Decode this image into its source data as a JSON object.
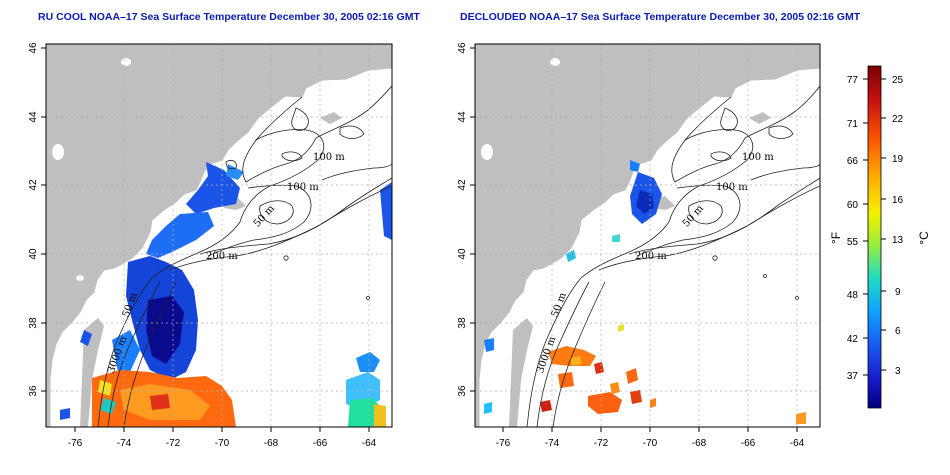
{
  "maps": [
    {
      "title": "RU COOL NOAA–17 Sea Surface Temperature December 30, 2005 02:16 GMT",
      "lat_ticks": [
        "46",
        "44",
        "42",
        "40",
        "38",
        "36"
      ],
      "lon_ticks": [
        "-76",
        "-74",
        "-72",
        "-70",
        "-68",
        "-66",
        "-64"
      ],
      "contour_labels": [
        "100 m",
        "100 m",
        "50 m",
        "200 m",
        "50 m",
        "3000 m"
      ]
    },
    {
      "title": "DECLOUDED NOAA–17 Sea Surface Temperature December 30, 2005 02:16 GMT",
      "lat_ticks": [
        "46",
        "44",
        "42",
        "40",
        "38",
        "36"
      ],
      "lon_ticks": [
        "-76",
        "-74",
        "-72",
        "-70",
        "-68",
        "-66",
        "-64"
      ],
      "contour_labels": [
        "100 m",
        "100 m",
        "50 m",
        "200 m",
        "50 m",
        "3000 m"
      ]
    }
  ],
  "colorbar": {
    "unit_f": "°F",
    "unit_c": "°C",
    "f_ticks": [
      "77",
      "71",
      "66",
      "60",
      "55",
      "48",
      "42",
      "37"
    ],
    "c_ticks": [
      "25",
      "22",
      "19",
      "16",
      "13",
      "9",
      "6",
      "3"
    ],
    "colors": [
      "#7a0000",
      "#c81010",
      "#ff5a00",
      "#ffb000",
      "#f5f000",
      "#9aee3a",
      "#20dcc0",
      "#10a0ff",
      "#1858f0",
      "#1818c8",
      "#000080"
    ]
  },
  "colors": {
    "land": "#bfbfbf",
    "title": "#0b1bb2",
    "grid": "#b0b0b0"
  }
}
